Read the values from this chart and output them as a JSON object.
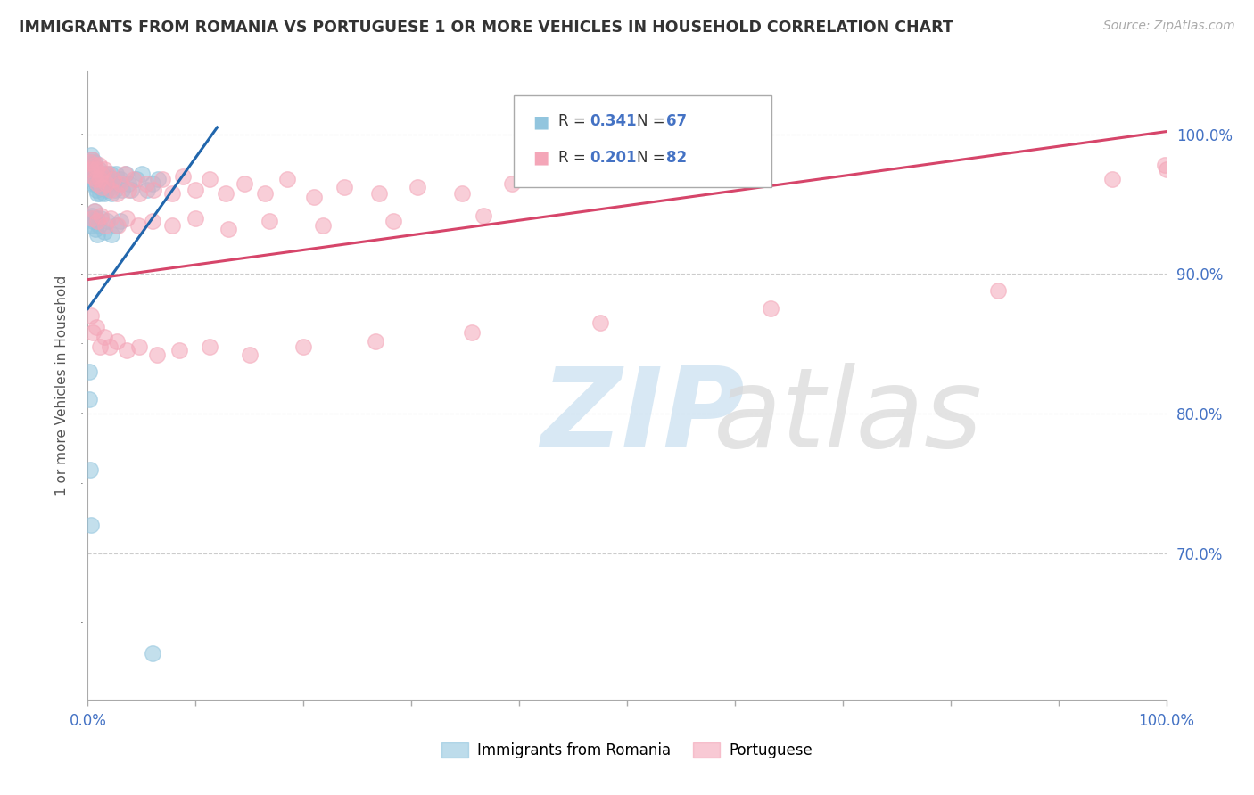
{
  "title": "IMMIGRANTS FROM ROMANIA VS PORTUGUESE 1 OR MORE VEHICLES IN HOUSEHOLD CORRELATION CHART",
  "source": "Source: ZipAtlas.com",
  "ylabel": "1 or more Vehicles in Household",
  "xmin": 0.0,
  "xmax": 1.0,
  "ymin": 0.595,
  "ymax": 1.045,
  "ytick_labels": [
    "70.0%",
    "80.0%",
    "90.0%",
    "100.0%"
  ],
  "ytick_values": [
    0.7,
    0.8,
    0.9,
    1.0
  ],
  "color_blue": "#92c5de",
  "color_pink": "#f4a6b8",
  "line_color_blue": "#2166ac",
  "line_color_pink": "#d6456a",
  "background_color": "#ffffff",
  "romania_x": [
    0.002,
    0.002,
    0.003,
    0.003,
    0.004,
    0.004,
    0.004,
    0.005,
    0.005,
    0.006,
    0.006,
    0.007,
    0.007,
    0.008,
    0.008,
    0.009,
    0.009,
    0.01,
    0.01,
    0.011,
    0.011,
    0.012,
    0.013,
    0.014,
    0.015,
    0.015,
    0.016,
    0.017,
    0.018,
    0.019,
    0.02,
    0.021,
    0.022,
    0.023,
    0.025,
    0.026,
    0.028,
    0.03,
    0.032,
    0.035,
    0.038,
    0.04,
    0.045,
    0.05,
    0.055,
    0.06,
    0.065,
    0.002,
    0.003,
    0.004,
    0.005,
    0.006,
    0.007,
    0.008,
    0.009,
    0.01,
    0.012,
    0.015,
    0.018,
    0.022,
    0.026,
    0.03,
    0.001,
    0.001,
    0.002,
    0.003,
    0.06
  ],
  "romania_y": [
    0.98,
    0.975,
    0.985,
    0.978,
    0.982,
    0.972,
    0.968,
    0.975,
    0.965,
    0.98,
    0.97,
    0.975,
    0.965,
    0.972,
    0.96,
    0.968,
    0.958,
    0.975,
    0.962,
    0.97,
    0.958,
    0.968,
    0.972,
    0.965,
    0.97,
    0.958,
    0.965,
    0.972,
    0.96,
    0.968,
    0.965,
    0.972,
    0.958,
    0.968,
    0.96,
    0.972,
    0.965,
    0.968,
    0.96,
    0.972,
    0.965,
    0.96,
    0.968,
    0.972,
    0.96,
    0.965,
    0.968,
    0.94,
    0.935,
    0.942,
    0.938,
    0.945,
    0.932,
    0.94,
    0.928,
    0.935,
    0.94,
    0.93,
    0.938,
    0.928,
    0.935,
    0.938,
    0.83,
    0.81,
    0.76,
    0.72,
    0.628
  ],
  "portuguese_x": [
    0.002,
    0.003,
    0.004,
    0.005,
    0.006,
    0.007,
    0.008,
    0.009,
    0.01,
    0.011,
    0.012,
    0.013,
    0.015,
    0.017,
    0.019,
    0.021,
    0.024,
    0.027,
    0.03,
    0.034,
    0.038,
    0.043,
    0.048,
    0.054,
    0.061,
    0.069,
    0.078,
    0.088,
    0.1,
    0.113,
    0.128,
    0.145,
    0.164,
    0.185,
    0.21,
    0.238,
    0.27,
    0.306,
    0.347,
    0.393,
    0.004,
    0.006,
    0.009,
    0.012,
    0.016,
    0.021,
    0.028,
    0.036,
    0.047,
    0.06,
    0.078,
    0.1,
    0.13,
    0.168,
    0.218,
    0.283,
    0.367,
    0.003,
    0.005,
    0.008,
    0.011,
    0.015,
    0.02,
    0.027,
    0.036,
    0.048,
    0.064,
    0.085,
    0.113,
    0.15,
    0.2,
    0.267,
    0.356,
    0.475,
    0.633,
    0.844,
    0.95,
    0.999,
    1.0
  ],
  "portuguese_y": [
    0.98,
    0.975,
    0.982,
    0.97,
    0.978,
    0.968,
    0.975,
    0.965,
    0.978,
    0.968,
    0.972,
    0.962,
    0.975,
    0.965,
    0.972,
    0.96,
    0.968,
    0.958,
    0.965,
    0.972,
    0.96,
    0.968,
    0.958,
    0.965,
    0.96,
    0.968,
    0.958,
    0.97,
    0.96,
    0.968,
    0.958,
    0.965,
    0.958,
    0.968,
    0.955,
    0.962,
    0.958,
    0.962,
    0.958,
    0.965,
    0.94,
    0.945,
    0.938,
    0.942,
    0.935,
    0.94,
    0.935,
    0.94,
    0.935,
    0.938,
    0.935,
    0.94,
    0.932,
    0.938,
    0.935,
    0.938,
    0.942,
    0.87,
    0.858,
    0.862,
    0.848,
    0.855,
    0.848,
    0.852,
    0.845,
    0.848,
    0.842,
    0.845,
    0.848,
    0.842,
    0.848,
    0.852,
    0.858,
    0.865,
    0.875,
    0.888,
    0.968,
    0.978,
    0.975
  ],
  "romania_line_x0": 0.0,
  "romania_line_x1": 0.12,
  "romania_line_y0": 0.875,
  "romania_line_y1": 1.005,
  "portuguese_line_x0": 0.0,
  "portuguese_line_x1": 1.0,
  "portuguese_line_y0": 0.896,
  "portuguese_line_y1": 1.002
}
